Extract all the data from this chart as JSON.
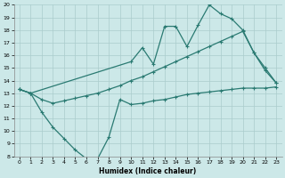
{
  "xlabel": "Humidex (Indice chaleur)",
  "xlim": [
    -0.5,
    23.5
  ],
  "ylim": [
    8,
    20
  ],
  "xticks": [
    0,
    1,
    2,
    3,
    4,
    5,
    6,
    7,
    8,
    9,
    10,
    11,
    12,
    13,
    14,
    15,
    16,
    17,
    18,
    19,
    20,
    21,
    22,
    23
  ],
  "yticks": [
    8,
    9,
    10,
    11,
    12,
    13,
    14,
    15,
    16,
    17,
    18,
    19,
    20
  ],
  "bg_color": "#cce8e8",
  "grid_color": "#aacccc",
  "line_color": "#2a7a72",
  "line1_x": [
    0,
    1,
    2,
    3,
    4,
    5,
    6,
    7,
    8,
    9,
    10,
    11,
    12,
    13,
    14,
    15,
    16,
    17,
    18,
    19,
    20,
    21,
    22,
    23
  ],
  "line1_y": [
    13.3,
    13.0,
    11.5,
    10.3,
    9.4,
    8.5,
    7.8,
    7.8,
    9.5,
    12.5,
    12.1,
    12.2,
    12.4,
    12.5,
    12.7,
    12.9,
    13.0,
    13.1,
    13.2,
    13.3,
    13.4,
    13.4,
    13.4,
    13.5
  ],
  "line2_x": [
    0,
    1,
    2,
    3,
    4,
    5,
    6,
    7,
    8,
    9,
    10,
    11,
    12,
    13,
    14,
    15,
    16,
    17,
    18,
    19,
    20,
    21,
    22,
    23
  ],
  "line2_y": [
    13.3,
    13.0,
    12.5,
    12.2,
    12.4,
    12.6,
    12.8,
    13.0,
    13.3,
    13.6,
    14.0,
    14.3,
    14.7,
    15.1,
    15.5,
    15.9,
    16.3,
    16.7,
    17.1,
    17.5,
    17.9,
    16.2,
    15.0,
    13.8
  ],
  "line3_x": [
    0,
    1,
    10,
    11,
    12,
    13,
    14,
    15,
    16,
    17,
    18,
    19,
    20,
    21,
    22,
    23
  ],
  "line3_y": [
    13.3,
    13.0,
    15.5,
    16.6,
    15.3,
    18.3,
    18.3,
    16.7,
    18.4,
    20.0,
    19.3,
    18.9,
    18.0,
    16.2,
    14.8,
    13.8
  ]
}
